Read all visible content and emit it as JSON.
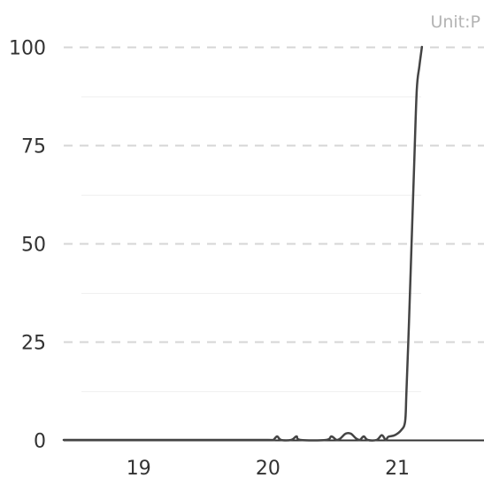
{
  "chart_data": {
    "type": "line",
    "unit_label": "Unit:P",
    "x_ticks": [
      {
        "value": 19,
        "label": "19"
      },
      {
        "value": 20,
        "label": "20"
      },
      {
        "value": 21,
        "label": "21"
      }
    ],
    "y_ticks": [
      {
        "value": 0,
        "label": "0"
      },
      {
        "value": 25,
        "label": "25"
      },
      {
        "value": 50,
        "label": "50"
      },
      {
        "value": 75,
        "label": "75"
      },
      {
        "value": 100,
        "label": "100"
      }
    ],
    "xlim": [
      18.42,
      21.67
    ],
    "ylim": [
      0,
      100
    ],
    "grid": true,
    "series": [
      {
        "color": "#444444",
        "points": [
          [
            18.42,
            0
          ],
          [
            19.0,
            0
          ],
          [
            19.5,
            0
          ],
          [
            20.0,
            0
          ],
          [
            20.04,
            0
          ],
          [
            20.07,
            0.9
          ],
          [
            20.1,
            0
          ],
          [
            20.18,
            0
          ],
          [
            20.22,
            0.9
          ],
          [
            20.25,
            0
          ],
          [
            20.45,
            0
          ],
          [
            20.49,
            0.9
          ],
          [
            20.53,
            0
          ],
          [
            20.56,
            0.4
          ],
          [
            20.6,
            1.6
          ],
          [
            20.64,
            1.6
          ],
          [
            20.68,
            0.4
          ],
          [
            20.71,
            0
          ],
          [
            20.74,
            0.9
          ],
          [
            20.77,
            0
          ],
          [
            20.84,
            0
          ],
          [
            20.88,
            1.2
          ],
          [
            20.91,
            0
          ],
          [
            20.93,
            0.8
          ],
          [
            20.98,
            1.2
          ],
          [
            21.03,
            2.5
          ],
          [
            21.06,
            4.7
          ],
          [
            21.07,
            12
          ],
          [
            21.09,
            30
          ],
          [
            21.11,
            50
          ],
          [
            21.13,
            70
          ],
          [
            21.15,
            89
          ],
          [
            21.17,
            95
          ],
          [
            21.19,
            100
          ]
        ]
      }
    ]
  }
}
